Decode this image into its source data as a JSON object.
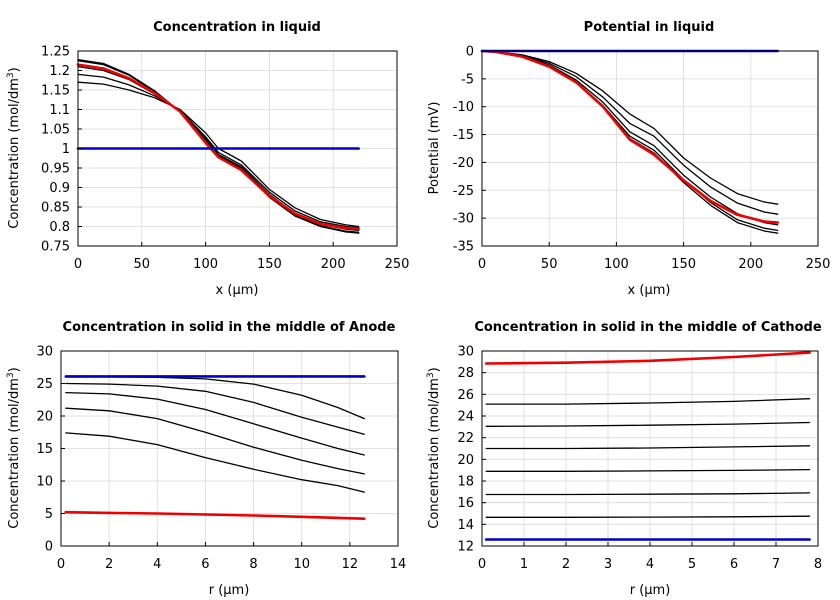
{
  "chart_data": [
    {
      "id": "c1",
      "type": "line",
      "title": "Concentration in liquid",
      "xlabel": "x (µm)",
      "ylabel_main": "Concentration (mol/dm",
      "ylabel_sup": "3",
      "ylabel_tail": ")",
      "xlim": [
        0,
        250
      ],
      "ylim": [
        0.75,
        1.25
      ],
      "xticks": [
        0,
        50,
        100,
        150,
        200,
        250
      ],
      "xtick_labels": [
        "0",
        "50",
        "100",
        "150",
        "200",
        "250"
      ],
      "yticks": [
        0.75,
        0.8,
        0.85,
        0.9,
        0.95,
        1,
        1.05,
        1.1,
        1.15,
        1.2,
        1.25
      ],
      "ytick_labels": [
        "0.75",
        "0.8",
        "0.85",
        "0.9",
        "0.95",
        "1",
        "1.05",
        "1.1",
        "1.15",
        "1.2",
        "1.25"
      ],
      "grid": true,
      "series": [
        {
          "name": "black-1",
          "color": "#000000",
          "width": 1.3,
          "x": [
            0,
            20,
            40,
            60,
            80,
            100,
            110,
            128,
            150,
            170,
            190,
            210,
            220
          ],
          "y": [
            1.17,
            1.165,
            1.15,
            1.13,
            1.1,
            1.04,
            1.0,
            0.968,
            0.895,
            0.848,
            0.818,
            0.804,
            0.8
          ]
        },
        {
          "name": "black-2",
          "color": "#000000",
          "width": 1.3,
          "x": [
            0,
            20,
            40,
            60,
            80,
            100,
            110,
            128,
            150,
            170,
            190,
            210,
            220
          ],
          "y": [
            1.19,
            1.183,
            1.163,
            1.135,
            1.098,
            1.03,
            0.99,
            0.958,
            0.888,
            0.84,
            0.812,
            0.8,
            0.797
          ]
        },
        {
          "name": "black-3",
          "color": "#000000",
          "width": 1.3,
          "x": [
            0,
            20,
            40,
            60,
            80,
            100,
            110,
            128,
            150,
            170,
            190,
            210,
            220
          ],
          "y": [
            1.21,
            1.2,
            1.177,
            1.14,
            1.096,
            1.025,
            0.985,
            0.953,
            0.882,
            0.834,
            0.806,
            0.793,
            0.79
          ]
        },
        {
          "name": "black-4",
          "color": "#000000",
          "width": 1.3,
          "x": [
            0,
            20,
            40,
            60,
            80,
            100,
            110,
            128,
            150,
            170,
            190,
            210,
            220
          ],
          "y": [
            1.225,
            1.215,
            1.188,
            1.146,
            1.095,
            1.02,
            0.982,
            0.95,
            0.878,
            0.83,
            0.802,
            0.788,
            0.785
          ]
        },
        {
          "name": "black-5",
          "color": "#000000",
          "width": 1.3,
          "x": [
            0,
            20,
            40,
            60,
            80,
            100,
            110,
            128,
            150,
            170,
            190,
            210,
            220
          ],
          "y": [
            1.228,
            1.218,
            1.19,
            1.148,
            1.094,
            1.018,
            0.98,
            0.948,
            0.875,
            0.827,
            0.8,
            0.786,
            0.783
          ]
        },
        {
          "name": "red",
          "color": "#ee0000",
          "width": 2.6,
          "x": [
            0,
            20,
            40,
            60,
            80,
            100,
            110,
            128,
            150,
            170,
            190,
            210,
            220
          ],
          "y": [
            1.215,
            1.205,
            1.18,
            1.142,
            1.095,
            1.015,
            0.978,
            0.945,
            0.878,
            0.833,
            0.807,
            0.796,
            0.794
          ]
        },
        {
          "name": "blue",
          "color": "#0000cc",
          "width": 2.6,
          "x": [
            0,
            220
          ],
          "y": [
            1.0,
            1.0
          ]
        }
      ]
    },
    {
      "id": "c2",
      "type": "line",
      "title": "Potential in liquid",
      "xlabel": "x (µm)",
      "ylabel_main": "Potential (mV)",
      "ylabel_sup": "",
      "ylabel_tail": "",
      "xlim": [
        0,
        250
      ],
      "ylim": [
        -35,
        0
      ],
      "xticks": [
        0,
        50,
        100,
        150,
        200,
        250
      ],
      "xtick_labels": [
        "0",
        "50",
        "100",
        "150",
        "200",
        "250"
      ],
      "yticks": [
        0,
        -5,
        -10,
        -15,
        -20,
        -25,
        -30,
        -35
      ],
      "ytick_labels": [
        "0",
        "-5",
        "-10",
        "-15",
        "-20",
        "-25",
        "-30",
        "-35"
      ],
      "grid": true,
      "series": [
        {
          "name": "black-1",
          "color": "#000000",
          "width": 1.3,
          "x": [
            0,
            10,
            30,
            50,
            70,
            90,
            110,
            128,
            150,
            170,
            190,
            210,
            220
          ],
          "y": [
            0,
            -0.1,
            -0.7,
            -1.9,
            -4.0,
            -7.2,
            -11.3,
            -13.9,
            -19.2,
            -22.8,
            -25.6,
            -27.1,
            -27.5
          ]
        },
        {
          "name": "black-2",
          "color": "#000000",
          "width": 1.3,
          "x": [
            0,
            10,
            30,
            50,
            70,
            90,
            110,
            128,
            150,
            170,
            190,
            210,
            220
          ],
          "y": [
            0,
            -0.1,
            -0.8,
            -2.2,
            -4.6,
            -8.3,
            -13.0,
            -15.3,
            -20.5,
            -24.4,
            -27.3,
            -28.9,
            -29.3
          ]
        },
        {
          "name": "black-3",
          "color": "#000000",
          "width": 1.3,
          "x": [
            0,
            10,
            30,
            50,
            70,
            90,
            110,
            128,
            150,
            170,
            190,
            210,
            220
          ],
          "y": [
            0,
            -0.15,
            -0.9,
            -2.5,
            -5.2,
            -9.2,
            -14.5,
            -17.0,
            -22.3,
            -26.2,
            -29.2,
            -30.8,
            -31.2
          ]
        },
        {
          "name": "black-4",
          "color": "#000000",
          "width": 1.3,
          "x": [
            0,
            10,
            30,
            50,
            70,
            90,
            110,
            128,
            150,
            170,
            190,
            210,
            220
          ],
          "y": [
            0,
            -0.15,
            -1.0,
            -2.7,
            -5.5,
            -9.8,
            -15.3,
            -17.8,
            -23.1,
            -27.2,
            -30.3,
            -31.8,
            -32.2
          ]
        },
        {
          "name": "black-5",
          "color": "#000000",
          "width": 1.3,
          "x": [
            0,
            10,
            30,
            50,
            70,
            90,
            110,
            128,
            150,
            170,
            190,
            210,
            220
          ],
          "y": [
            0,
            -0.15,
            -1.0,
            -2.8,
            -5.7,
            -10.1,
            -15.7,
            -18.3,
            -23.6,
            -27.7,
            -30.8,
            -32.3,
            -32.7
          ]
        },
        {
          "name": "red",
          "color": "#ee0000",
          "width": 2.6,
          "x": [
            0,
            10,
            30,
            50,
            70,
            90,
            110,
            128,
            150,
            170,
            190,
            210,
            220
          ],
          "y": [
            0,
            -0.15,
            -1.0,
            -2.8,
            -5.6,
            -10.0,
            -15.9,
            -18.6,
            -23.2,
            -26.9,
            -29.4,
            -30.6,
            -30.8
          ]
        },
        {
          "name": "blue",
          "color": "#0000cc",
          "width": 2.6,
          "x": [
            0,
            220
          ],
          "y": [
            0,
            0
          ]
        }
      ]
    },
    {
      "id": "c3",
      "type": "line",
      "title": "Concentration in solid in the middle of Anode",
      "xlabel": "r (µm)",
      "ylabel_main": "Concentration (mol/dm",
      "ylabel_sup": "3",
      "ylabel_tail": ")",
      "xlim": [
        0,
        14
      ],
      "ylim": [
        0,
        30
      ],
      "xticks": [
        0,
        2,
        4,
        6,
        8,
        10,
        12,
        14
      ],
      "xtick_labels": [
        "0",
        "2",
        "4",
        "6",
        "8",
        "10",
        "12",
        "14"
      ],
      "yticks": [
        0,
        5,
        10,
        15,
        20,
        25,
        30
      ],
      "ytick_labels": [
        "0",
        "5",
        "10",
        "15",
        "20",
        "25",
        "30"
      ],
      "grid": true,
      "series": [
        {
          "name": "black-1",
          "color": "#000000",
          "width": 1.3,
          "x": [
            0.2,
            2,
            4,
            6,
            8,
            10,
            11.5,
            12.6
          ],
          "y": [
            26.0,
            26.0,
            25.95,
            25.7,
            24.9,
            23.2,
            21.3,
            19.6
          ]
        },
        {
          "name": "black-2",
          "color": "#000000",
          "width": 1.3,
          "x": [
            0.2,
            2,
            4,
            6,
            8,
            10,
            11.5,
            12.6
          ],
          "y": [
            25.0,
            24.9,
            24.6,
            23.8,
            22.1,
            19.8,
            18.3,
            17.2
          ]
        },
        {
          "name": "black-3",
          "color": "#000000",
          "width": 1.3,
          "x": [
            0.2,
            2,
            4,
            6,
            8,
            10,
            11.5,
            12.6
          ],
          "y": [
            23.6,
            23.4,
            22.6,
            21.0,
            18.8,
            16.6,
            15.0,
            14.0
          ]
        },
        {
          "name": "black-4",
          "color": "#000000",
          "width": 1.3,
          "x": [
            0.2,
            2,
            4,
            6,
            8,
            10,
            11.5,
            12.6
          ],
          "y": [
            21.2,
            20.8,
            19.6,
            17.5,
            15.2,
            13.2,
            11.9,
            11.1
          ]
        },
        {
          "name": "black-5",
          "color": "#000000",
          "width": 1.3,
          "x": [
            0.2,
            2,
            4,
            6,
            8,
            10,
            11.5,
            12.6
          ],
          "y": [
            17.4,
            16.9,
            15.6,
            13.6,
            11.8,
            10.2,
            9.3,
            8.3
          ]
        },
        {
          "name": "red",
          "color": "#ee0000",
          "width": 2.6,
          "x": [
            0.2,
            2,
            4,
            6,
            8,
            10,
            12.6
          ],
          "y": [
            5.2,
            5.1,
            5.0,
            4.85,
            4.7,
            4.5,
            4.2
          ]
        },
        {
          "name": "blue",
          "color": "#0000cc",
          "width": 2.6,
          "x": [
            0.2,
            12.6
          ],
          "y": [
            26.1,
            26.1
          ]
        }
      ]
    },
    {
      "id": "c4",
      "type": "line",
      "title": "Concentration in solid in the middle of Cathode",
      "xlabel": "r (µm)",
      "ylabel_main": "Concentration (mol/dm",
      "ylabel_sup": "3",
      "ylabel_tail": ")",
      "xlim": [
        0,
        8
      ],
      "ylim": [
        12,
        30
      ],
      "xticks": [
        0,
        1,
        2,
        3,
        4,
        5,
        6,
        7,
        8
      ],
      "xtick_labels": [
        "0",
        "1",
        "2",
        "3",
        "4",
        "5",
        "6",
        "7",
        "8"
      ],
      "yticks": [
        12,
        14,
        16,
        18,
        20,
        22,
        24,
        26,
        28,
        30
      ],
      "ytick_labels": [
        "12",
        "14",
        "16",
        "18",
        "20",
        "22",
        "24",
        "26",
        "28",
        "30"
      ],
      "grid": true,
      "series": [
        {
          "name": "black-1",
          "color": "#000000",
          "width": 1.3,
          "x": [
            0.1,
            2,
            4,
            6,
            7.8
          ],
          "y": [
            25.1,
            25.1,
            25.2,
            25.35,
            25.6
          ]
        },
        {
          "name": "black-2",
          "color": "#000000",
          "width": 1.3,
          "x": [
            0.1,
            2,
            4,
            6,
            7.8
          ],
          "y": [
            23.05,
            23.08,
            23.15,
            23.25,
            23.4
          ]
        },
        {
          "name": "black-3",
          "color": "#000000",
          "width": 1.3,
          "x": [
            0.1,
            2,
            4,
            6,
            7.8
          ],
          "y": [
            21.0,
            21.0,
            21.05,
            21.15,
            21.25
          ]
        },
        {
          "name": "black-4",
          "color": "#000000",
          "width": 1.3,
          "x": [
            0.1,
            2,
            4,
            6,
            7.8
          ],
          "y": [
            18.9,
            18.9,
            18.93,
            18.98,
            19.05
          ]
        },
        {
          "name": "black-5",
          "color": "#000000",
          "width": 1.3,
          "x": [
            0.1,
            2,
            4,
            6,
            7.8
          ],
          "y": [
            16.75,
            16.75,
            16.78,
            16.82,
            16.9
          ]
        },
        {
          "name": "black-6",
          "color": "#000000",
          "width": 1.3,
          "x": [
            0.1,
            2,
            4,
            6,
            7.8
          ],
          "y": [
            14.65,
            14.65,
            14.67,
            14.7,
            14.75
          ]
        },
        {
          "name": "red",
          "color": "#ee0000",
          "width": 2.6,
          "x": [
            0.1,
            2,
            4,
            6,
            7.8
          ],
          "y": [
            28.85,
            28.92,
            29.1,
            29.45,
            29.85
          ]
        },
        {
          "name": "blue",
          "color": "#0000cc",
          "width": 2.6,
          "x": [
            0.1,
            7.8
          ],
          "y": [
            12.6,
            12.6
          ]
        }
      ]
    }
  ]
}
